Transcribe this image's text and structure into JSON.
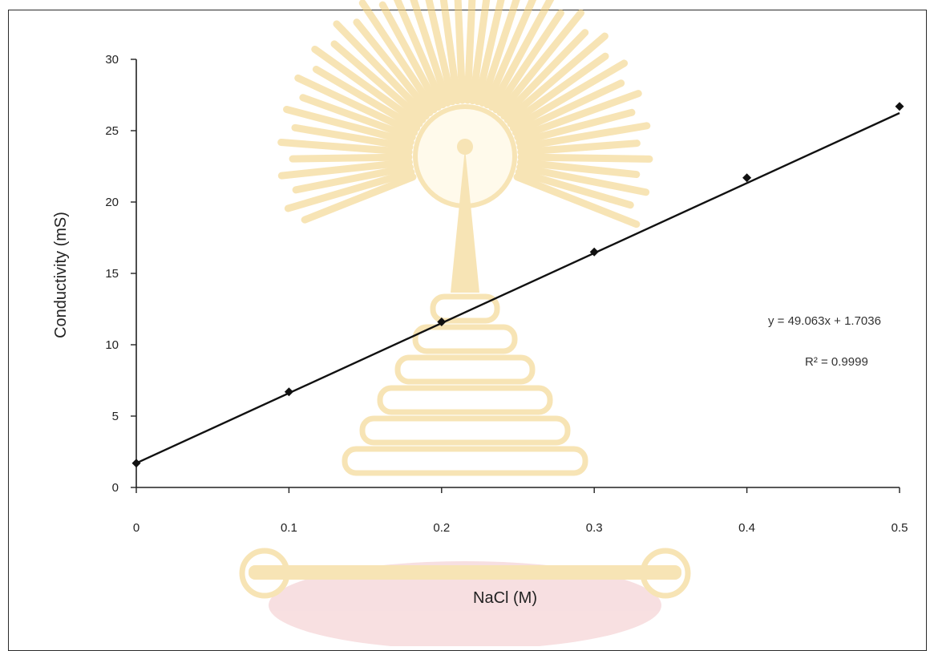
{
  "chart_data": {
    "type": "scatter",
    "title": "",
    "xlabel": "NaCl (M)",
    "ylabel": "Conductivity (mS)",
    "x": [
      0,
      0.1,
      0.2,
      0.3,
      0.4,
      0.5
    ],
    "y": [
      1.7,
      6.7,
      11.6,
      16.5,
      21.7,
      26.7
    ],
    "xlim": [
      0,
      0.5
    ],
    "ylim": [
      0,
      30
    ],
    "xticks": [
      "0",
      "0.1",
      "0.2",
      "0.3",
      "0.4",
      "0.5"
    ],
    "yticks": [
      "0",
      "5",
      "10",
      "15",
      "20",
      "25",
      "30"
    ],
    "trendline": {
      "type": "linear",
      "slope": 49.063,
      "intercept": 1.7036
    },
    "annotations": {
      "equation": "y = 49.063x + 1.7036",
      "r_squared": "R² = 0.9999"
    },
    "grid": false,
    "legend": "none",
    "colors": {
      "line": "#111111",
      "marker": "#111111",
      "watermark_gold": "#f2cf7a",
      "watermark_pink": "#f2c6c9"
    }
  },
  "background": {
    "watermark": "university-emblem"
  }
}
